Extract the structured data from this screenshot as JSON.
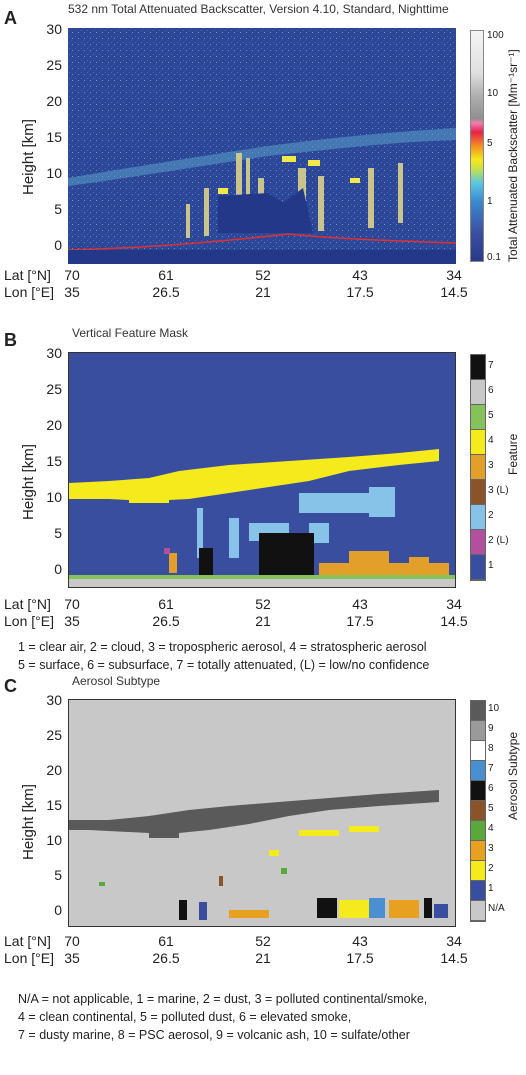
{
  "panels": {
    "a": {
      "letter": "A",
      "title": "532 nm Total Attenuated Backscatter, Version 4.10, Standard, Nighttime",
      "ylabel": "Height [km]",
      "yticks": [
        "30",
        "25",
        "20",
        "15",
        "10",
        "5",
        "0"
      ],
      "lat_label": "Lat [°N]",
      "lon_label": "Lon [°E]",
      "lat_ticks": [
        "70",
        "61",
        "52",
        "43",
        "34"
      ],
      "lon_ticks": [
        "35",
        "26.5",
        "21",
        "17.5",
        "14.5"
      ],
      "colorbar_title": "Total Attenuated Backscatter [Mm⁻¹sr⁻¹]",
      "colorbar_ticks": [
        "100",
        "10",
        "5",
        "1",
        "0.1"
      ]
    },
    "b": {
      "letter": "B",
      "title": "Vertical Feature Mask",
      "ylabel": "Height [km]",
      "yticks": [
        "30",
        "25",
        "20",
        "15",
        "10",
        "5",
        "0"
      ],
      "lat_label": "Lat [°N]",
      "lon_label": "Lon [°E]",
      "lat_ticks": [
        "70",
        "61",
        "52",
        "43",
        "34"
      ],
      "lon_ticks": [
        "35",
        "26.5",
        "21",
        "17.5",
        "14.5"
      ],
      "colorbar_title": "Feature",
      "classes": [
        {
          "label": "7",
          "color": "#111111"
        },
        {
          "label": "6",
          "color": "#c8c8c8"
        },
        {
          "label": "5",
          "color": "#86c25a"
        },
        {
          "label": "4",
          "color": "#f4ea1c"
        },
        {
          "label": "3",
          "color": "#e2a02a"
        },
        {
          "label": "3 (L)",
          "color": "#8a5428"
        },
        {
          "label": "2",
          "color": "#87c3e8"
        },
        {
          "label": "2 (L)",
          "color": "#b3509e"
        },
        {
          "label": "1",
          "color": "#3a4ea0"
        }
      ],
      "legend_lines": [
        "1 = clear air, 2 = cloud, 3 = tropospheric aerosol, 4 = stratospheric aerosol",
        "5 = surface, 6 = subsurface, 7 = totally attenuated, (L) = low/no confidence"
      ]
    },
    "c": {
      "letter": "C",
      "title": "Aerosol Subtype",
      "ylabel": "Height [km]",
      "yticks": [
        "30",
        "25",
        "20",
        "15",
        "10",
        "5",
        "0"
      ],
      "lat_label": "Lat [°N]",
      "lon_label": "Lon [°E]",
      "lat_ticks": [
        "70",
        "61",
        "52",
        "43",
        "34"
      ],
      "lon_ticks": [
        "35",
        "26.5",
        "21",
        "17.5",
        "14.5"
      ],
      "colorbar_title": "Aerosol Subtype",
      "classes": [
        {
          "label": "10",
          "color": "#5a5a5a"
        },
        {
          "label": "9",
          "color": "#9a9a9a"
        },
        {
          "label": "8",
          "color": "#ffffff"
        },
        {
          "label": "7",
          "color": "#4a8fd0"
        },
        {
          "label": "6",
          "color": "#111111"
        },
        {
          "label": "5",
          "color": "#8a5428"
        },
        {
          "label": "4",
          "color": "#5aa83c"
        },
        {
          "label": "3",
          "color": "#e8a020"
        },
        {
          "label": "2",
          "color": "#f4ea1c"
        },
        {
          "label": "1",
          "color": "#3a4ea0"
        },
        {
          "label": "N/A",
          "color": "#c8c8c8"
        }
      ],
      "legend_lines": [
        "N/A = not applicable, 1 = marine, 2 = dust, 3 = polluted continental/smoke,",
        "4 = clean continental, 5 = polluted dust, 6 = elevated smoke,",
        "7 = dusty marine, 8 = PSC aerosol, 9 = volcanic ash, 10 = sulfate/other"
      ]
    }
  }
}
